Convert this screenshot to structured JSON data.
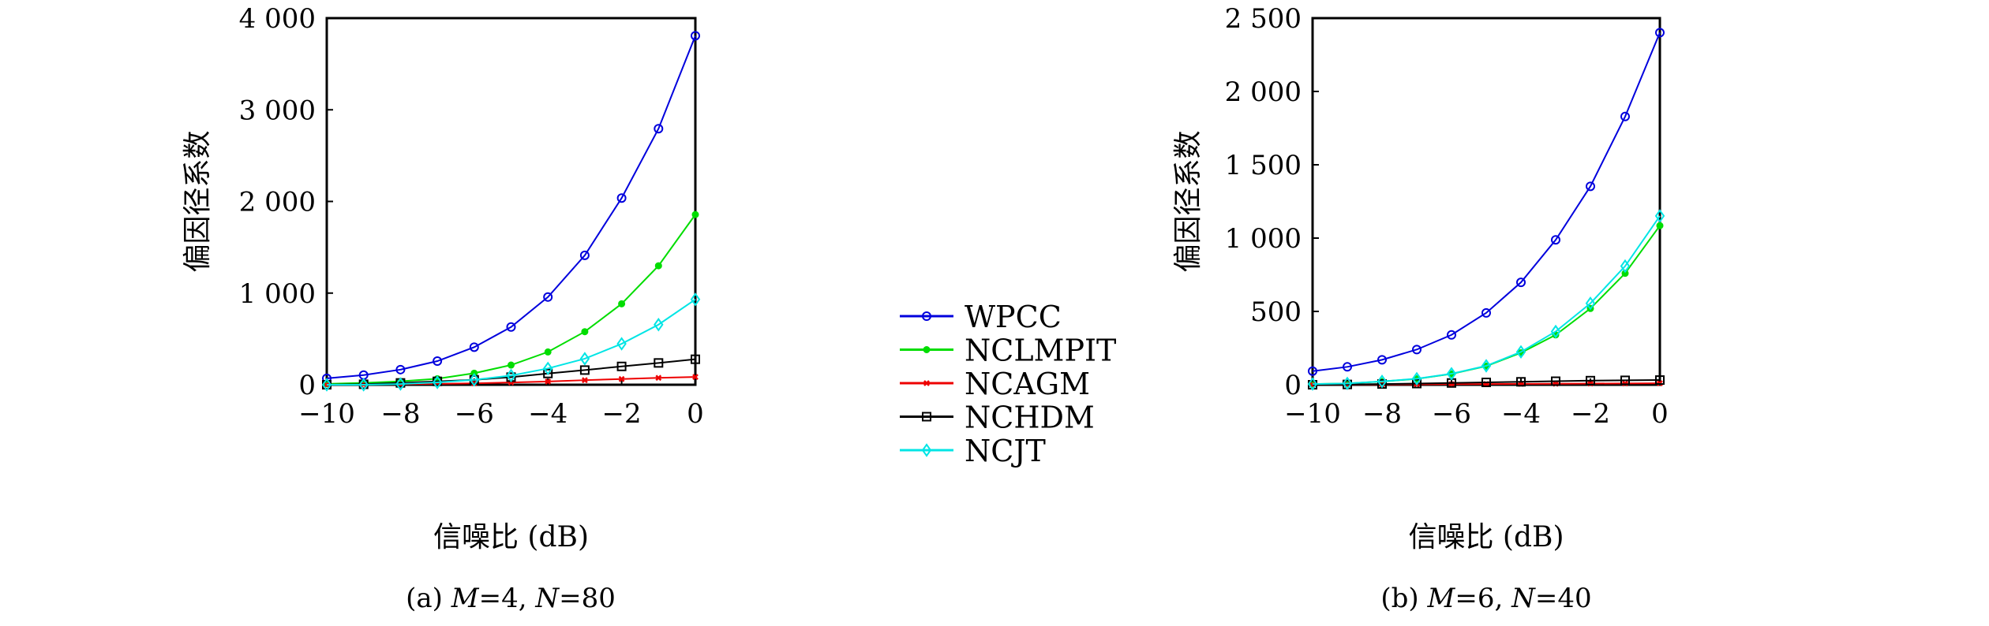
{
  "chart_data": [
    {
      "type": "line",
      "caption": {
        "prefix": "(a) ",
        "m_var": "M",
        "m_val": "=4, ",
        "n_var": "N",
        "n_val": "=80"
      },
      "xlabel": "信噪比 (dB)",
      "ylabel": "偏因径系数",
      "x": [
        -10,
        -9,
        -8,
        -7,
        -6,
        -5,
        -4,
        -3,
        -2,
        -1,
        0
      ],
      "xlim": [
        -10,
        0
      ],
      "ylim": [
        0,
        4000
      ],
      "xticks": [
        -10,
        -8,
        -6,
        -4,
        -2,
        0
      ],
      "xtick_labels": [
        "−10",
        "−8",
        "−6",
        "−4",
        "−2",
        "0"
      ],
      "yticks": [
        0,
        1000,
        2000,
        3000,
        4000
      ],
      "ytick_labels": [
        "0",
        "1 000",
        "2 000",
        "3 000",
        "4 000"
      ],
      "grid": false,
      "series": [
        {
          "name": "WPCC",
          "color": "#0000dd",
          "marker": "circle",
          "values": [
            70,
            105,
            165,
            258,
            410,
            630,
            957,
            1412,
            2037,
            2794,
            3808
          ]
        },
        {
          "name": "NCLMPIT",
          "color": "#00dd00",
          "marker": "dot",
          "values": [
            10,
            20,
            37,
            66,
            126,
            215,
            358,
            579,
            883,
            1298,
            1857
          ]
        },
        {
          "name": "NCAGM",
          "color": "#ee0000",
          "marker": "x",
          "values": [
            0,
            3,
            6,
            10,
            15,
            25,
            35,
            50,
            62,
            75,
            85
          ]
        },
        {
          "name": "NCHDM",
          "color": "#000000",
          "marker": "square",
          "values": [
            0,
            5,
            20,
            37,
            54,
            83,
            123,
            160,
            200,
            238,
            278
          ]
        },
        {
          "name": "NCJT",
          "color": "#00e5e5",
          "marker": "diamond",
          "values": [
            0,
            0,
            8,
            26,
            54,
            100,
            178,
            284,
            447,
            656,
            931
          ]
        }
      ]
    },
    {
      "type": "line",
      "caption": {
        "prefix": "(b) ",
        "m_var": "M",
        "m_val": "=6, ",
        "n_var": "N",
        "n_val": "=40"
      },
      "xlabel": "信噪比 (dB)",
      "ylabel": "偏因径系数",
      "x": [
        -10,
        -9,
        -8,
        -7,
        -6,
        -5,
        -4,
        -3,
        -2,
        -1,
        0
      ],
      "xlim": [
        -10,
        0
      ],
      "ylim": [
        0,
        2500
      ],
      "xticks": [
        -10,
        -8,
        -6,
        -4,
        -2,
        0
      ],
      "xtick_labels": [
        "−10",
        "−8",
        "−6",
        "−4",
        "−2",
        "0"
      ],
      "yticks": [
        0,
        500,
        1000,
        1500,
        2000,
        2500
      ],
      "ytick_labels": [
        "0",
        "500",
        "1 000",
        "1 500",
        "2 000",
        "2 500"
      ],
      "grid": false,
      "series": [
        {
          "name": "WPCC",
          "color": "#0000dd",
          "marker": "circle",
          "values": [
            93,
            122,
            170,
            240,
            340,
            490,
            698,
            988,
            1353,
            1829,
            2401
          ]
        },
        {
          "name": "NCLMPIT",
          "color": "#00dd00",
          "marker": "dot",
          "values": [
            5,
            9,
            22,
            40,
            74,
            127,
            218,
            340,
            520,
            760,
            1085
          ]
        },
        {
          "name": "NCAGM",
          "color": "#ee0000",
          "marker": "x",
          "values": [
            0,
            1,
            2,
            3,
            4,
            5,
            6,
            7,
            8,
            9,
            10
          ]
        },
        {
          "name": "NCHDM",
          "color": "#000000",
          "marker": "square",
          "values": [
            0,
            2,
            5,
            8,
            12,
            16,
            20,
            24,
            28,
            30,
            32
          ]
        },
        {
          "name": "NCJT",
          "color": "#00e5e5",
          "marker": "diamond",
          "values": [
            5,
            9,
            23,
            41,
            75,
            129,
            224,
            363,
            555,
            809,
            1151
          ]
        }
      ]
    }
  ],
  "legend": {
    "placement": "center",
    "entries": [
      "WPCC",
      "NCLMPIT",
      "NCAGM",
      "NCHDM",
      "NCJT"
    ]
  }
}
